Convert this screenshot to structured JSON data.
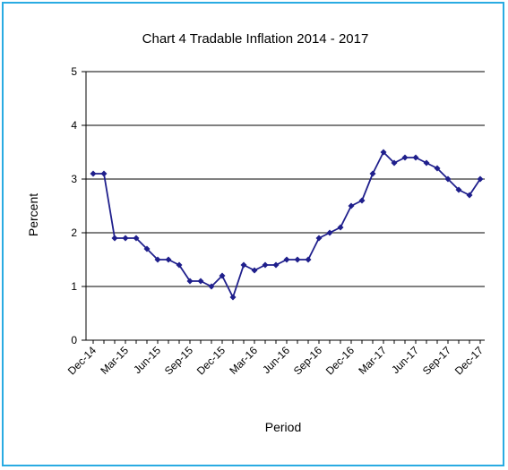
{
  "chart_data": {
    "type": "line",
    "title": "Chart 4 Tradable Inflation 2014 - 2017",
    "xlabel": "Period",
    "ylabel": "Percent",
    "ylim": [
      0,
      5
    ],
    "yticks": [
      0,
      1,
      2,
      3,
      4,
      5
    ],
    "grid": "horizontal",
    "legend": "none",
    "colors": {
      "frame": "#29abe2",
      "series": "#1f1f8c",
      "grid": "#000000"
    },
    "x": [
      "Dec-14",
      "Jan-15",
      "Feb-15",
      "Mar-15",
      "Apr-15",
      "May-15",
      "Jun-15",
      "Jul-15",
      "Aug-15",
      "Sep-15",
      "Oct-15",
      "Nov-15",
      "Dec-15",
      "Jan-16",
      "Feb-16",
      "Mar-16",
      "Apr-16",
      "May-16",
      "Jun-16",
      "Jul-16",
      "Aug-16",
      "Sep-16",
      "Oct-16",
      "Nov-16",
      "Dec-16",
      "Jan-17",
      "Feb-17",
      "Mar-17",
      "Apr-17",
      "May-17",
      "Jun-17",
      "Jul-17",
      "Aug-17",
      "Sep-17",
      "Oct-17",
      "Nov-17",
      "Dec-17"
    ],
    "xtick_labels": [
      "Dec-14",
      "Mar-15",
      "Jun-15",
      "Sep-15",
      "Dec-15",
      "Mar-16",
      "Jun-16",
      "Sep-16",
      "Dec-16",
      "Mar-17",
      "Jun-17",
      "Sep-17",
      "Dec-17"
    ],
    "series": [
      {
        "values": [
          3.1,
          3.1,
          1.9,
          1.9,
          1.9,
          1.7,
          1.5,
          1.5,
          1.4,
          1.1,
          1.1,
          1.0,
          1.2,
          0.8,
          1.4,
          1.3,
          1.4,
          1.4,
          1.5,
          1.5,
          1.5,
          1.9,
          2.0,
          2.1,
          2.5,
          2.6,
          3.1,
          3.5,
          3.3,
          3.4,
          3.4,
          3.3,
          3.2,
          3.0,
          2.8,
          2.7,
          3.0
        ]
      }
    ]
  }
}
